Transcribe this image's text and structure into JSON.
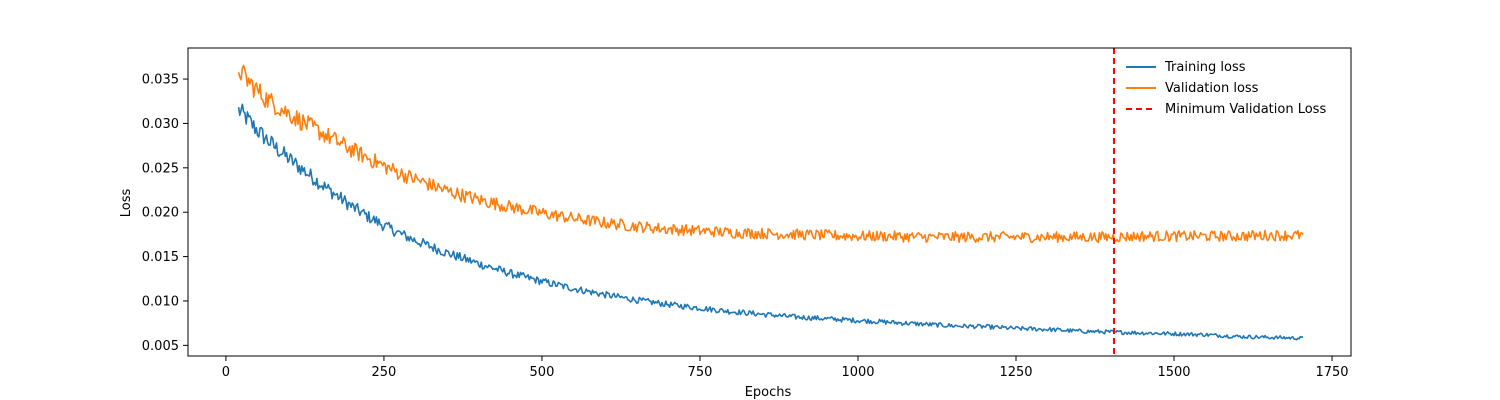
{
  "chart_data": {
    "type": "line",
    "title": "",
    "xlabel": "Epochs",
    "ylabel": "Loss",
    "xlim": [
      -60,
      1780
    ],
    "ylim": [
      0.0038,
      0.0385
    ],
    "x_ticks": [
      0,
      250,
      500,
      750,
      1000,
      1250,
      1500,
      1750
    ],
    "y_ticks": [
      0.005,
      0.01,
      0.015,
      0.02,
      0.025,
      0.03,
      0.035
    ],
    "y_tick_labels": [
      "0.005",
      "0.010",
      "0.015",
      "0.020",
      "0.025",
      "0.030",
      "0.035"
    ],
    "grid": false,
    "legend_position": "top-right",
    "series": [
      {
        "name": "Training loss",
        "color": "#1f77b4",
        "x": [
          20,
          30,
          40,
          50,
          60,
          80,
          100,
          125,
          150,
          175,
          200,
          225,
          250,
          275,
          300,
          350,
          400,
          450,
          500,
          550,
          600,
          650,
          700,
          750,
          800,
          850,
          900,
          950,
          1000,
          1050,
          1100,
          1150,
          1200,
          1250,
          1300,
          1350,
          1400,
          1450,
          1500,
          1550,
          1600,
          1650,
          1705
        ],
        "y": [
          0.0315,
          0.0308,
          0.03,
          0.0292,
          0.0285,
          0.0272,
          0.026,
          0.0246,
          0.0232,
          0.0219,
          0.0206,
          0.0195,
          0.0185,
          0.0176,
          0.0168,
          0.0154,
          0.0142,
          0.0131,
          0.0122,
          0.0114,
          0.0107,
          0.0101,
          0.0096,
          0.0092,
          0.0088,
          0.0085,
          0.0082,
          0.008,
          0.0078,
          0.0076,
          0.0074,
          0.0072,
          0.0071,
          0.0069,
          0.0068,
          0.0066,
          0.0065,
          0.0064,
          0.0063,
          0.0062,
          0.006,
          0.0059,
          0.0058
        ]
      },
      {
        "name": "Validation loss",
        "color": "#ff7f0e",
        "x": [
          20,
          30,
          40,
          50,
          60,
          80,
          100,
          125,
          150,
          175,
          200,
          225,
          250,
          275,
          300,
          350,
          400,
          450,
          500,
          550,
          600,
          650,
          700,
          750,
          800,
          850,
          900,
          950,
          1000,
          1050,
          1100,
          1150,
          1200,
          1250,
          1300,
          1350,
          1400,
          1450,
          1500,
          1550,
          1600,
          1650,
          1705
        ],
        "y": [
          0.0362,
          0.0352,
          0.0344,
          0.0337,
          0.033,
          0.032,
          0.0311,
          0.03,
          0.029,
          0.028,
          0.027,
          0.0261,
          0.0252,
          0.0244,
          0.0237,
          0.0224,
          0.0214,
          0.0206,
          0.0199,
          0.0193,
          0.0188,
          0.0184,
          0.0181,
          0.0179,
          0.0177,
          0.0176,
          0.0175,
          0.0174,
          0.0173,
          0.0173,
          0.0172,
          0.0172,
          0.0172,
          0.0172,
          0.0172,
          0.0172,
          0.0172,
          0.0173,
          0.0173,
          0.0173,
          0.0173,
          0.0174,
          0.0174
        ]
      }
    ],
    "vlines": [
      {
        "name": "Minimum Validation Loss",
        "x": 1405,
        "color": "#ff0000",
        "style": "dashed"
      }
    ]
  }
}
